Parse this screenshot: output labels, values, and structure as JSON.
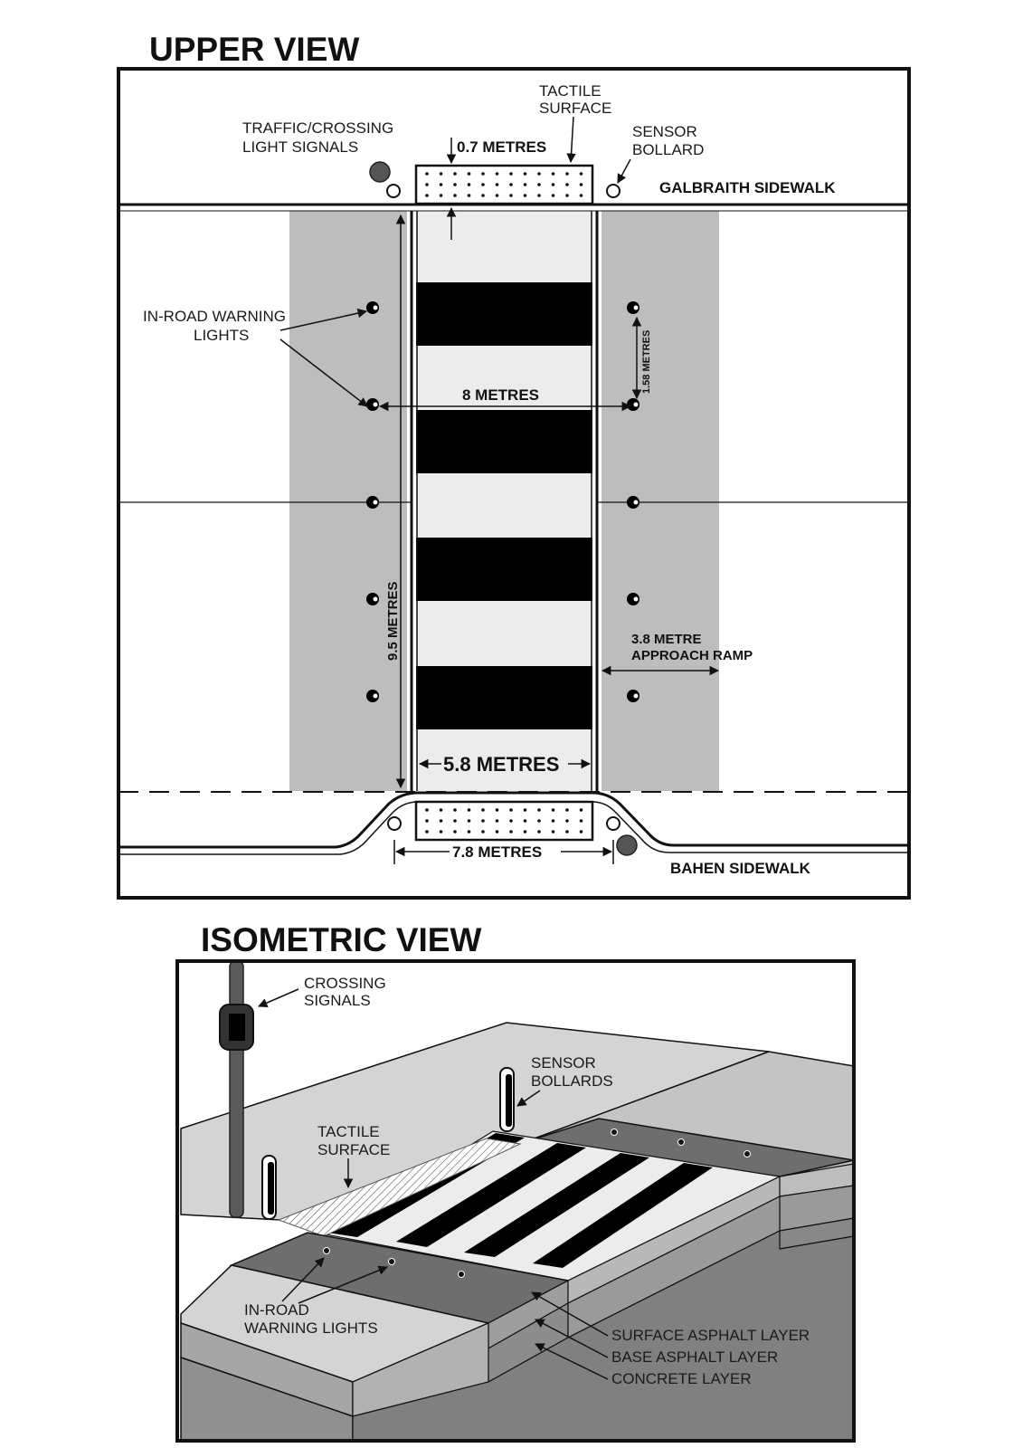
{
  "upper_view": {
    "title": "UPPER VIEW",
    "labels": {
      "tactile_line1": "TACTILE",
      "tactile_line2": "SURFACE",
      "traffic_line1": "TRAFFIC/CROSSING",
      "traffic_line2": "LIGHT SIGNALS",
      "bollard_line1": "SENSOR",
      "bollard_line2": "BOLLARD",
      "galbraith": "GALBRAITH SIDEWALK",
      "bahen": "BAHEN SIDEWALK",
      "inroad_line1": "IN-ROAD WARNING",
      "inroad_line2": "LIGHTS",
      "ramp_line1": "3.8 METRE",
      "ramp_line2": "APPROACH RAMP"
    },
    "dimensions": {
      "tactile_depth": "0.7 METRES",
      "light_spacing": "1.58 METRES",
      "light_span": "8 METRES",
      "crossing_length": "9.5 METRES",
      "crossing_width": "5.8 METRES",
      "curb_width": "7.8 METRES"
    }
  },
  "isometric_view": {
    "title": "ISOMETRIC VIEW",
    "labels": {
      "signals_line1": "CROSSING",
      "signals_line2": "SIGNALS",
      "bollards_line1": "SENSOR",
      "bollards_line2": "BOLLARDS",
      "tactile_line1": "TACTILE",
      "tactile_line2": "SURFACE",
      "inroad_line1": "IN-ROAD",
      "inroad_line2": "WARNING LIGHTS",
      "surface_layer": "SURFACE ASPHALT LAYER",
      "base_layer": "BASE ASPHALT LAYER",
      "concrete_layer": "CONCRETE LAYER"
    }
  },
  "colors": {
    "ramp": "#bdbdbd",
    "crossing_light": "#ececec",
    "stripe": "#000000",
    "signal_light": "#555555"
  }
}
